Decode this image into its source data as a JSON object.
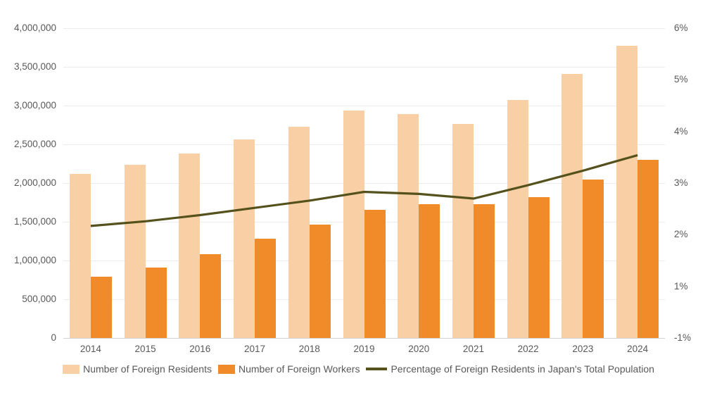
{
  "chart_data": {
    "type": "bar",
    "subtype": "combo-bar-line",
    "title": "",
    "categories": [
      "2014",
      "2015",
      "2016",
      "2017",
      "2018",
      "2019",
      "2020",
      "2021",
      "2022",
      "2023",
      "2024"
    ],
    "series": [
      {
        "name": "Number of Foreign Residents",
        "type": "bar",
        "axis": "left",
        "color": "#f9cfa5",
        "values": [
          2121831,
          2232189,
          2382822,
          2561848,
          2731093,
          2933137,
          2887116,
          2760635,
          3075213,
          3410992,
          3768977
        ]
      },
      {
        "name": "Number of Foreign Workers",
        "type": "bar",
        "axis": "left",
        "color": "#f18a28",
        "values": [
          787627,
          907896,
          1083769,
          1278670,
          1460463,
          1658804,
          1724328,
          1727221,
          1822725,
          2048675,
          2302587
        ]
      },
      {
        "name": "Percentage of Foreign Residents in Japan's Total Population",
        "type": "line",
        "axis": "right",
        "color": "#54511d",
        "values": [
          1.67,
          1.76,
          1.88,
          2.02,
          2.16,
          2.33,
          2.29,
          2.2,
          2.46,
          2.74,
          3.04
        ]
      }
    ],
    "left_axis": {
      "min": 0,
      "max": 4000000,
      "tick_labels": [
        "4,000,000",
        "3,500,000",
        "3,000,000",
        "2,500,000",
        "2,000,000",
        "1,500,000",
        "1,000,000",
        "500,000",
        "0"
      ]
    },
    "right_axis": {
      "tick_labels": [
        "6%",
        "5%",
        "4%",
        "3%",
        "2%",
        "1%",
        "-1%"
      ],
      "plot_scale_top": 5.5,
      "plot_scale_bottom": -0.5
    },
    "grid": true,
    "legend_position": "bottom",
    "colors": {
      "grid": "#ececec",
      "axis_line": "#d2d2d2",
      "tick_text": "#595959",
      "background": "#ffffff"
    }
  }
}
